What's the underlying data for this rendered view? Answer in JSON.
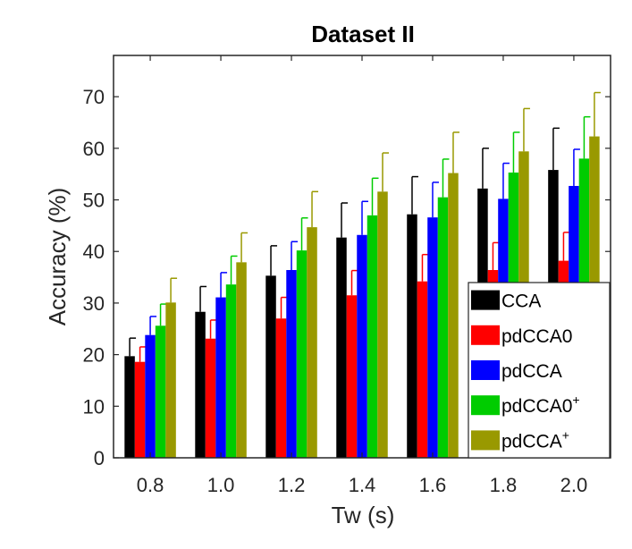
{
  "chart_data": {
    "type": "bar",
    "title": "Dataset II",
    "xlabel": "Tw (s)",
    "ylabel": "Accuracy (%)",
    "categories": [
      "0.8",
      "1.0",
      "1.2",
      "1.4",
      "1.6",
      "1.8",
      "2.0"
    ],
    "ylim": [
      0,
      78
    ],
    "yticks": [
      0,
      10,
      20,
      30,
      40,
      50,
      60,
      70
    ],
    "grid": false,
    "legend_position": "bottom-right",
    "series": [
      {
        "name": "CCA",
        "color": "#000000",
        "values": [
          19.7,
          28.3,
          35.3,
          42.7,
          47.2,
          52.2,
          55.8
        ],
        "errors": [
          3.5,
          4.9,
          5.8,
          6.7,
          7.3,
          7.8,
          8.1
        ]
      },
      {
        "name": "pdCCA0",
        "color": "#ff0000",
        "values": [
          18.6,
          23.1,
          27.0,
          31.5,
          34.2,
          36.4,
          38.2
        ],
        "errors": [
          2.9,
          3.6,
          4.1,
          4.8,
          5.2,
          5.3,
          5.5
        ]
      },
      {
        "name": "pdCCA",
        "color": "#0000ff",
        "values": [
          23.8,
          31.1,
          36.4,
          43.2,
          46.6,
          50.2,
          52.7
        ],
        "errors": [
          3.6,
          4.8,
          5.5,
          6.5,
          6.8,
          6.9,
          7.1
        ]
      },
      {
        "name": "pdCCA0",
        "name_sup": "+",
        "color": "#00cc00",
        "values": [
          25.6,
          33.6,
          40.2,
          47.0,
          50.5,
          55.3,
          58.0
        ],
        "errors": [
          4.2,
          5.5,
          6.3,
          7.2,
          7.4,
          7.8,
          8.1
        ]
      },
      {
        "name": "pdCCA",
        "name_sup": "+",
        "color": "#999900",
        "values": [
          30.1,
          37.9,
          44.7,
          51.6,
          55.2,
          59.4,
          62.3
        ],
        "errors": [
          4.7,
          5.7,
          6.9,
          7.5,
          7.9,
          8.3,
          8.5
        ]
      }
    ]
  }
}
